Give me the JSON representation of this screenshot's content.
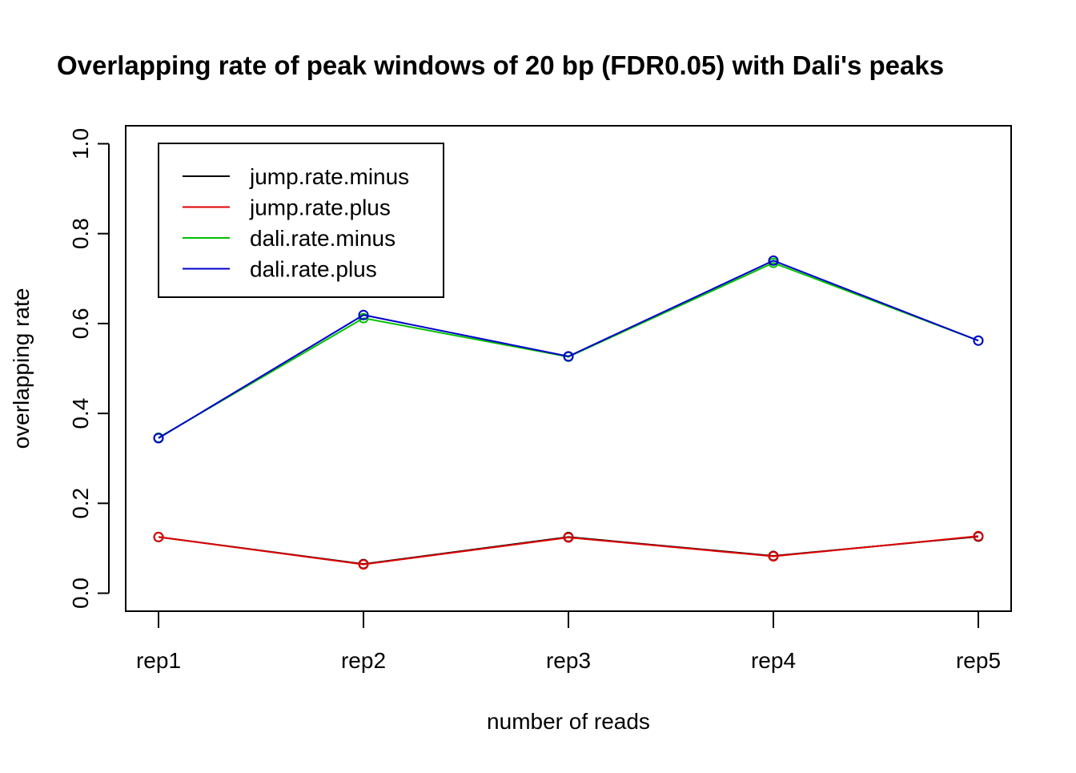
{
  "chart_data": {
    "type": "line",
    "title": "Overlapping rate of peak windows of 20 bp (FDR0.05) with Dali's peaks",
    "xlabel": "number of reads",
    "ylabel": "overlapping rate",
    "categories": [
      "rep1",
      "rep2",
      "rep3",
      "rep4",
      "rep5"
    ],
    "ylim": [
      -0.04,
      1.04
    ],
    "yticks": [
      "0.0",
      "0.2",
      "0.4",
      "0.6",
      "0.8",
      "1.0"
    ],
    "ytick_values": [
      0.0,
      0.2,
      0.4,
      0.6,
      0.8,
      1.0
    ],
    "grid": false,
    "legend_position": "top-left",
    "markers": "open-circle",
    "series": [
      {
        "name": "jump.rate.minus",
        "color": "#000000",
        "values": [
          0.125,
          0.065,
          0.125,
          0.083,
          0.126
        ]
      },
      {
        "name": "jump.rate.plus",
        "color": "#DF0000",
        "values": [
          0.125,
          0.064,
          0.124,
          0.082,
          0.127
        ]
      },
      {
        "name": "dali.rate.minus",
        "color": "#00C000",
        "values": [
          0.346,
          0.612,
          0.526,
          0.735,
          0.562
        ]
      },
      {
        "name": "dali.rate.plus",
        "color": "#0000CC",
        "values": [
          0.345,
          0.619,
          0.527,
          0.74,
          0.562
        ]
      }
    ]
  }
}
